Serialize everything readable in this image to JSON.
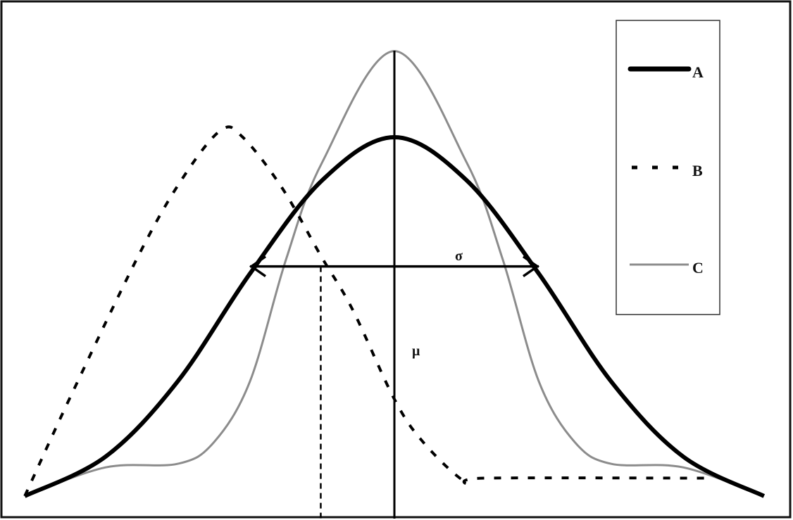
{
  "chart_data": {
    "type": "line",
    "title": "",
    "xlabel": "",
    "ylabel": "",
    "xlim": [
      -2.56,
      2.56
    ],
    "ylim": [
      0,
      1.3
    ],
    "grid": false,
    "legend_position": "top-right",
    "series": [
      {
        "name": "A",
        "style": "solid-thick",
        "color": "#000000",
        "x": [
          -2.56,
          -2,
          -1.5,
          -1,
          -0.5,
          0,
          0.5,
          1,
          1.5,
          2,
          2.56
        ],
        "y": [
          0,
          0.11,
          0.32,
          0.62,
          0.88,
          1.0,
          0.88,
          0.62,
          0.32,
          0.11,
          0
        ]
      },
      {
        "name": "B",
        "style": "dashed",
        "color": "#000000",
        "x": [
          -2.56,
          -2.24,
          -1.76,
          -1.46,
          -1.2,
          -1.05,
          -0.78,
          -0.51,
          -0.29,
          0,
          0.2,
          0.49,
          0.63,
          2.15
        ],
        "y": [
          0,
          0.28,
          0.68,
          0.89,
          1.02,
          1.0,
          0.86,
          0.67,
          0.52,
          0.27,
          0.15,
          0.04,
          0.05,
          0.05
        ]
      },
      {
        "name": "C",
        "style": "solid-thin",
        "color": "#8c8c8c",
        "x": [
          -2.56,
          -2,
          -1.5,
          -1.25,
          -1,
          -0.75,
          -0.5,
          0,
          0.5,
          0.75,
          1,
          1.25,
          1.5,
          2,
          2.56
        ],
        "y": [
          0,
          0.08,
          0.09,
          0.15,
          0.32,
          0.66,
          0.93,
          1.24,
          0.93,
          0.66,
          0.32,
          0.15,
          0.09,
          0.08,
          0
        ]
      }
    ],
    "annotations": {
      "mean_label": "μ",
      "sd_label": "σ",
      "mean_x": 0,
      "sd_arrow": {
        "x_from": -1,
        "x_to": 1,
        "y": 0.64
      },
      "dashed_marker_x": -0.51
    }
  }
}
